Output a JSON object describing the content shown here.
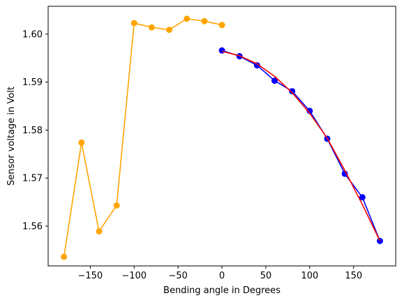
{
  "chart_data": {
    "type": "line",
    "title": "",
    "xlabel": "Bending angle in Degrees",
    "ylabel": "Sensor voltage in Volt",
    "xlim": [
      -198,
      198
    ],
    "ylim": [
      1.5517,
      1.6058
    ],
    "xticks": [
      -150,
      -100,
      -50,
      0,
      50,
      100,
      150
    ],
    "yticks": [
      1.56,
      1.57,
      1.58,
      1.59,
      1.6
    ],
    "xtick_labels": [
      "−150",
      "−100",
      "−50",
      "0",
      "50",
      "100",
      "150"
    ],
    "ytick_labels": [
      "1.56",
      "1.57",
      "1.58",
      "1.59",
      "1.60"
    ],
    "grid": false,
    "series": [
      {
        "color": "#FFA500",
        "marker": "circle",
        "x": [
          -180,
          -160,
          -140,
          -120,
          -100,
          -80,
          -60,
          -40,
          -20,
          0
        ],
        "y": [
          1.5536,
          1.5774,
          1.5589,
          1.5643,
          1.6023,
          1.6014,
          1.6009,
          1.6032,
          1.6027,
          1.6019
        ]
      },
      {
        "color": "#0000FF",
        "marker": "circle",
        "x": [
          0,
          20,
          40,
          60,
          80,
          100,
          120,
          140,
          160,
          180
        ],
        "y": [
          1.5966,
          1.5954,
          1.5935,
          1.5903,
          1.5881,
          1.584,
          1.5782,
          1.5709,
          1.566,
          1.5569
        ]
      },
      {
        "color": "#FF0000",
        "marker": "none",
        "x": [
          0,
          20,
          40,
          60,
          80,
          100,
          120,
          140,
          160,
          180
        ],
        "y": [
          1.5964,
          1.5955,
          1.5938,
          1.5912,
          1.5878,
          1.5835,
          1.5783,
          1.5716,
          1.5645,
          1.5569
        ]
      }
    ]
  }
}
